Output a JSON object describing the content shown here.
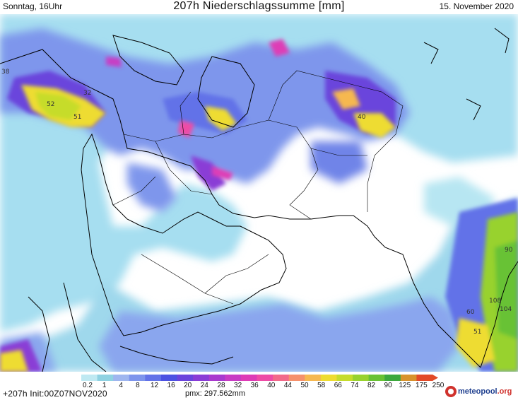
{
  "header": {
    "left": "Sonntag, 16Uhr",
    "center": "207h Niederschlagssumme [mm]",
    "right": "15. November 2020"
  },
  "footer": {
    "run_info": "+207h Init:00Z07NOV2020",
    "pmax": "pmx: 297.562mm",
    "brand_main": "meteopool",
    "brand_suffix": ".org"
  },
  "legend": {
    "ticks": [
      "0.2",
      "1",
      "4",
      "8",
      "12",
      "16",
      "20",
      "24",
      "28",
      "32",
      "36",
      "40",
      "44",
      "50",
      "58",
      "66",
      "74",
      "82",
      "90",
      "125",
      "175",
      "250"
    ],
    "colors": [
      "#bfe9f2",
      "#8fd2e2",
      "#9fb6ef",
      "#7d94ec",
      "#6272e8",
      "#4c52e2",
      "#6a44dc",
      "#8a3cd6",
      "#a93ace",
      "#c83cc4",
      "#de3cb6",
      "#ee4ca6",
      "#f26a8a",
      "#f6916c",
      "#f6b850",
      "#eedc30",
      "#c6dc2c",
      "#98d22e",
      "#68c234",
      "#3ca83c",
      "#d8922c",
      "#e24a28"
    ]
  },
  "map_labels": [
    "38",
    "52",
    "51",
    "40",
    "32",
    "90",
    "108",
    "104",
    "60",
    "51"
  ],
  "colors": {
    "coast": "#000000",
    "land_base": "#ffffff"
  }
}
